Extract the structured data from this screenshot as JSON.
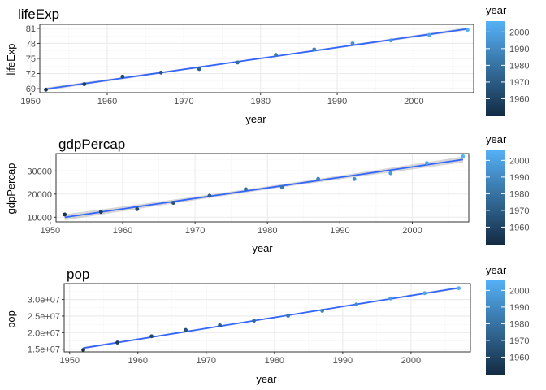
{
  "chart_data": [
    {
      "type": "scatter",
      "title": "lifeExp",
      "xlabel": "year",
      "ylabel": "lifeExp",
      "xlim": [
        1951.2,
        2007.8
      ],
      "ylim": [
        68.2,
        81.8
      ],
      "x_ticks": [
        1950,
        1960,
        1970,
        1980,
        1990,
        2000
      ],
      "y_ticks": [
        69,
        72,
        75,
        78,
        81
      ],
      "y_tick_labels": [
        "69",
        "72",
        "75",
        "78",
        "81"
      ],
      "grid": true,
      "smooth_line": true,
      "color_by": "year",
      "x": [
        1952,
        1957,
        1962,
        1967,
        1972,
        1977,
        1982,
        1987,
        1992,
        1997,
        2002,
        2007
      ],
      "y": [
        68.8,
        69.9,
        71.4,
        72.2,
        72.9,
        74.2,
        75.7,
        76.8,
        78.0,
        78.6,
        79.7,
        80.7
      ]
    },
    {
      "type": "scatter",
      "title": "gdpPercap",
      "xlabel": "year",
      "ylabel": "gdpPercap",
      "xlim": [
        1950.8,
        2007.8
      ],
      "ylim": [
        8000,
        37500
      ],
      "x_ticks": [
        1950,
        1960,
        1970,
        1980,
        1990,
        2000
      ],
      "y_ticks": [
        10000,
        20000,
        30000
      ],
      "y_tick_labels": [
        "10000",
        "20000",
        "30000"
      ],
      "grid": true,
      "smooth_line": true,
      "color_by": "year",
      "x": [
        1952,
        1957,
        1962,
        1967,
        1972,
        1977,
        1982,
        1987,
        1992,
        1997,
        2002,
        2007
      ],
      "y": [
        11200,
        12300,
        13500,
        16200,
        19300,
        22100,
        23000,
        26600,
        26500,
        29000,
        33400,
        36300
      ]
    },
    {
      "type": "scatter",
      "title": "pop",
      "xlabel": "year",
      "ylabel": "pop",
      "xlim": [
        1949.2,
        2008.7
      ],
      "ylim": [
        14200000,
        34800000
      ],
      "x_ticks": [
        1950,
        1960,
        1970,
        1980,
        1990,
        2000
      ],
      "y_ticks": [
        15000000,
        20000000,
        25000000,
        30000000
      ],
      "y_tick_labels": [
        "1.5e+07",
        "2.0e+07",
        "2.5e+07",
        "3.0e+07"
      ],
      "grid": true,
      "smooth_line": true,
      "color_by": "year",
      "x": [
        1952,
        1957,
        1962,
        1967,
        1972,
        1977,
        1982,
        1987,
        1992,
        1997,
        2002,
        2007
      ],
      "y": [
        14800000,
        17000000,
        18900000,
        20800000,
        22200000,
        23600000,
        25100000,
        26600000,
        28500000,
        30300000,
        31900000,
        33400000
      ]
    }
  ],
  "legend": {
    "title": "year",
    "ticks": [
      "1960",
      "1970",
      "1980",
      "1990",
      "2000"
    ],
    "tick_values": [
      1960,
      1970,
      1980,
      1990,
      2000
    ],
    "range": [
      1949.5,
      2006.5
    ],
    "color_low": "#132B43",
    "color_high": "#56B1F7"
  },
  "colors": {
    "smooth_line": "#3366FF",
    "ribbon": "#999999",
    "panel_border": "#333333",
    "grid_major": "#ebebeb",
    "grid_minor": "#f5f5f5"
  }
}
